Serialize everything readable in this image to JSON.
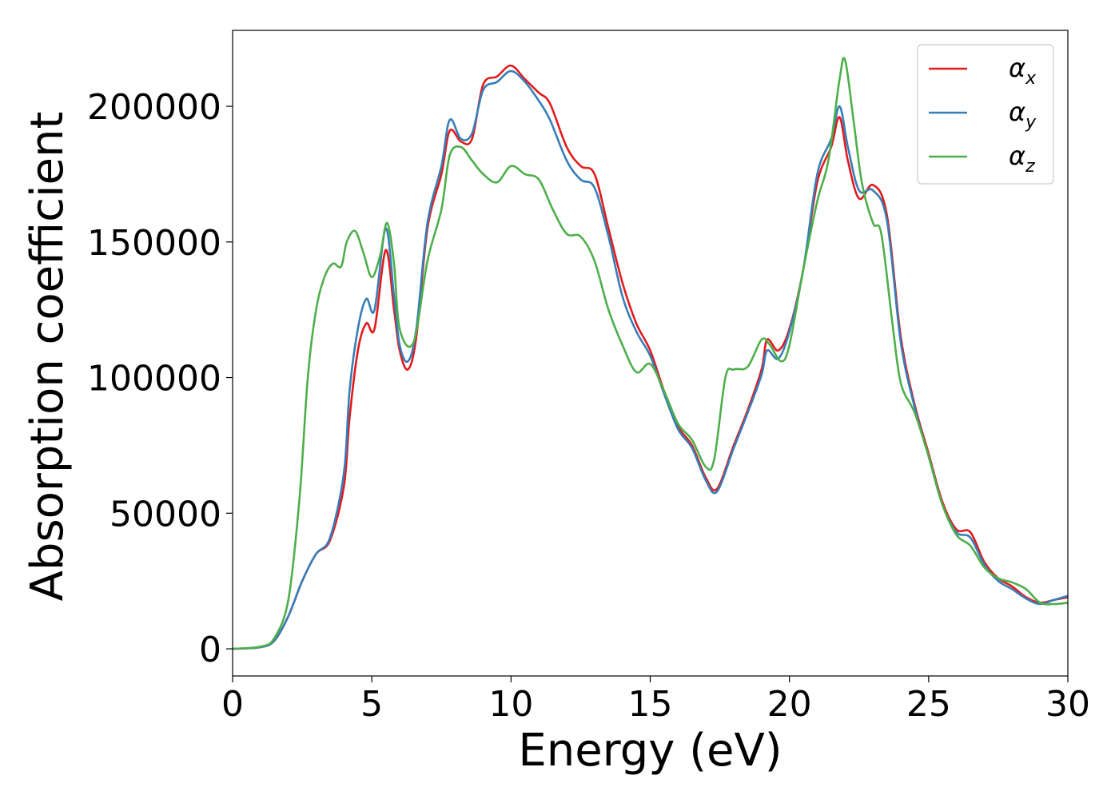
{
  "chart_data": {
    "type": "line",
    "title": "",
    "xlabel": "Energy (eV)",
    "ylabel": "Absorption coefficient",
    "xlim": [
      0,
      30
    ],
    "ylim": [
      -10000,
      228000
    ],
    "xticks": [
      0,
      5,
      10,
      15,
      20,
      25,
      30
    ],
    "xtick_labels": [
      "0",
      "5",
      "10",
      "15",
      "20",
      "25",
      "30"
    ],
    "yticks": [
      0,
      50000,
      100000,
      150000,
      200000
    ],
    "ytick_labels": [
      "0",
      "50000",
      "100000",
      "150000",
      "200000"
    ],
    "grid": false,
    "legend": "top-right",
    "series": [
      {
        "name": "α_x",
        "symbol": "α",
        "subscript": "x",
        "color": "#e41a1c",
        "points": [
          [
            0,
            0
          ],
          [
            1,
            600
          ],
          [
            1.5,
            3000
          ],
          [
            2,
            12000
          ],
          [
            2.5,
            25000
          ],
          [
            3,
            35000
          ],
          [
            3.5,
            40000
          ],
          [
            4,
            60000
          ],
          [
            4.2,
            85000
          ],
          [
            4.5,
            110000
          ],
          [
            4.8,
            120000
          ],
          [
            5.1,
            118000
          ],
          [
            5.5,
            147000
          ],
          [
            5.8,
            125000
          ],
          [
            6,
            110000
          ],
          [
            6.3,
            103000
          ],
          [
            6.6,
            115000
          ],
          [
            7,
            155000
          ],
          [
            7.5,
            175000
          ],
          [
            7.8,
            191000
          ],
          [
            8.2,
            187000
          ],
          [
            8.6,
            188000
          ],
          [
            9,
            208000
          ],
          [
            9.5,
            211000
          ],
          [
            10,
            215000
          ],
          [
            10.5,
            210000
          ],
          [
            11,
            205000
          ],
          [
            11.4,
            201000
          ],
          [
            12,
            185000
          ],
          [
            12.5,
            178000
          ],
          [
            13,
            175000
          ],
          [
            13.5,
            155000
          ],
          [
            14,
            135000
          ],
          [
            14.5,
            120000
          ],
          [
            15,
            110000
          ],
          [
            15.5,
            95000
          ],
          [
            16,
            82000
          ],
          [
            16.5,
            75000
          ],
          [
            17,
            63000
          ],
          [
            17.4,
            59000
          ],
          [
            18,
            75000
          ],
          [
            18.5,
            88000
          ],
          [
            19,
            103000
          ],
          [
            19.2,
            114000
          ],
          [
            19.6,
            110000
          ],
          [
            20,
            118000
          ],
          [
            20.5,
            140000
          ],
          [
            21,
            172000
          ],
          [
            21.5,
            185000
          ],
          [
            21.8,
            196000
          ],
          [
            22.1,
            180000
          ],
          [
            22.5,
            166000
          ],
          [
            23,
            171000
          ],
          [
            23.5,
            160000
          ],
          [
            24,
            115000
          ],
          [
            24.5,
            90000
          ],
          [
            25,
            72000
          ],
          [
            25.5,
            54000
          ],
          [
            26,
            44000
          ],
          [
            26.5,
            43000
          ],
          [
            27,
            32000
          ],
          [
            27.5,
            26000
          ],
          [
            28,
            23000
          ],
          [
            28.5,
            19000
          ],
          [
            29,
            17000
          ],
          [
            29.5,
            18000
          ],
          [
            30,
            19000
          ]
        ]
      },
      {
        "name": "α_y",
        "symbol": "α",
        "subscript": "y",
        "color": "#377eb8",
        "points": [
          [
            0,
            0
          ],
          [
            1,
            600
          ],
          [
            1.5,
            3000
          ],
          [
            2,
            12000
          ],
          [
            2.5,
            25000
          ],
          [
            3,
            35000
          ],
          [
            3.5,
            41000
          ],
          [
            4,
            65000
          ],
          [
            4.2,
            95000
          ],
          [
            4.5,
            118000
          ],
          [
            4.8,
            129000
          ],
          [
            5.1,
            125000
          ],
          [
            5.5,
            155000
          ],
          [
            5.8,
            130000
          ],
          [
            6,
            112000
          ],
          [
            6.3,
            106000
          ],
          [
            6.6,
            118000
          ],
          [
            7,
            157000
          ],
          [
            7.5,
            178000
          ],
          [
            7.8,
            195000
          ],
          [
            8.2,
            188000
          ],
          [
            8.6,
            190000
          ],
          [
            9,
            206000
          ],
          [
            9.5,
            209000
          ],
          [
            10,
            213000
          ],
          [
            10.5,
            209000
          ],
          [
            11,
            202000
          ],
          [
            11.4,
            195000
          ],
          [
            12,
            180000
          ],
          [
            12.5,
            173000
          ],
          [
            13,
            170000
          ],
          [
            13.5,
            152000
          ],
          [
            14,
            130000
          ],
          [
            14.5,
            117000
          ],
          [
            15,
            108000
          ],
          [
            15.5,
            94000
          ],
          [
            16,
            81000
          ],
          [
            16.5,
            74000
          ],
          [
            17,
            62000
          ],
          [
            17.4,
            58000
          ],
          [
            18,
            74000
          ],
          [
            18.5,
            87000
          ],
          [
            19,
            101000
          ],
          [
            19.2,
            110000
          ],
          [
            19.6,
            107000
          ],
          [
            20,
            117000
          ],
          [
            20.5,
            140000
          ],
          [
            21,
            175000
          ],
          [
            21.5,
            188000
          ],
          [
            21.8,
            200000
          ],
          [
            22.1,
            185000
          ],
          [
            22.5,
            169000
          ],
          [
            23,
            169000
          ],
          [
            23.5,
            158000
          ],
          [
            24,
            113000
          ],
          [
            24.5,
            89000
          ],
          [
            25,
            71000
          ],
          [
            25.5,
            53000
          ],
          [
            26,
            43000
          ],
          [
            26.5,
            41000
          ],
          [
            27,
            31000
          ],
          [
            27.5,
            25000
          ],
          [
            28,
            22000
          ],
          [
            28.5,
            18500
          ],
          [
            29,
            16500
          ],
          [
            29.5,
            18000
          ],
          [
            30,
            19500
          ]
        ]
      },
      {
        "name": "α_z",
        "symbol": "α",
        "subscript": "z",
        "color": "#4daf4a",
        "points": [
          [
            0,
            0
          ],
          [
            1,
            800
          ],
          [
            1.5,
            4000
          ],
          [
            2,
            18000
          ],
          [
            2.4,
            55000
          ],
          [
            2.7,
            100000
          ],
          [
            3,
            125000
          ],
          [
            3.3,
            137000
          ],
          [
            3.6,
            142000
          ],
          [
            3.9,
            141000
          ],
          [
            4.1,
            150000
          ],
          [
            4.4,
            154000
          ],
          [
            4.7,
            146000
          ],
          [
            5,
            137000
          ],
          [
            5.3,
            145000
          ],
          [
            5.55,
            157000
          ],
          [
            5.8,
            142000
          ],
          [
            6,
            118000
          ],
          [
            6.5,
            113000
          ],
          [
            7,
            143000
          ],
          [
            7.5,
            162000
          ],
          [
            7.8,
            182000
          ],
          [
            8.2,
            185000
          ],
          [
            8.6,
            180000
          ],
          [
            9,
            175000
          ],
          [
            9.5,
            172000
          ],
          [
            10,
            178000
          ],
          [
            10.5,
            175000
          ],
          [
            11,
            173000
          ],
          [
            11.5,
            162000
          ],
          [
            12,
            153000
          ],
          [
            12.5,
            152000
          ],
          [
            13,
            143000
          ],
          [
            13.5,
            125000
          ],
          [
            14,
            112000
          ],
          [
            14.5,
            102000
          ],
          [
            15,
            105000
          ],
          [
            15.5,
            95000
          ],
          [
            16,
            83000
          ],
          [
            16.5,
            77000
          ],
          [
            17,
            67000
          ],
          [
            17.3,
            70000
          ],
          [
            17.7,
            100000
          ],
          [
            18,
            103000
          ],
          [
            18.5,
            104000
          ],
          [
            19,
            114000
          ],
          [
            19.3,
            112000
          ],
          [
            19.7,
            106000
          ],
          [
            20,
            112000
          ],
          [
            20.5,
            140000
          ],
          [
            21,
            165000
          ],
          [
            21.4,
            180000
          ],
          [
            21.8,
            210000
          ],
          [
            22,
            217000
          ],
          [
            22.3,
            195000
          ],
          [
            22.6,
            172000
          ],
          [
            23,
            157000
          ],
          [
            23.3,
            153000
          ],
          [
            23.7,
            120000
          ],
          [
            24,
            98000
          ],
          [
            24.5,
            87000
          ],
          [
            25,
            71000
          ],
          [
            25.5,
            53000
          ],
          [
            26,
            42000
          ],
          [
            26.5,
            38000
          ],
          [
            27,
            30000
          ],
          [
            27.5,
            26000
          ],
          [
            28,
            24500
          ],
          [
            28.5,
            22000
          ],
          [
            29,
            17000
          ],
          [
            29.5,
            16500
          ],
          [
            30,
            17000
          ]
        ]
      }
    ]
  }
}
